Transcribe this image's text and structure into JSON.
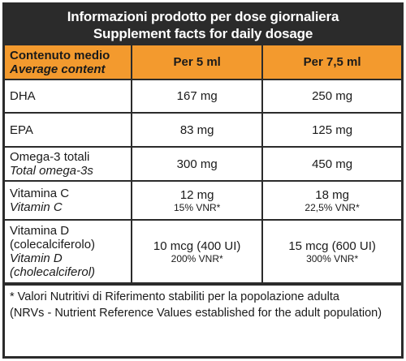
{
  "header": {
    "title_it": "Informazioni prodotto per dose giornaliera",
    "title_en": "Supplement facts for daily dosage"
  },
  "columns": {
    "label_it": "Contenuto medio",
    "label_en": "Average content",
    "dose1": "Per 5 ml",
    "dose2": "Per 7,5 ml"
  },
  "rows": [
    {
      "name": "DHA",
      "v1": "167 mg",
      "v2": "250 mg"
    },
    {
      "name": "EPA",
      "v1": "83 mg",
      "v2": "125 mg"
    },
    {
      "name": "Omega-3 totali",
      "name_en": "Total omega-3s",
      "v1": "300 mg",
      "v2": "450 mg"
    },
    {
      "name": "Vitamina C",
      "name_en": "Vitamin C",
      "v1": "12 mg",
      "v1_vnr": "15% VNR*",
      "v2": "18 mg",
      "v2_vnr": "22,5% VNR*"
    },
    {
      "name_line1": "Vitamina D",
      "name_line2": "(colecalciferolo)",
      "name_en_line1": "Vitamin D",
      "name_en_line2": "(cholecalciferol)",
      "v1": "10 mcg (400 UI)",
      "v1_vnr": "200% VNR*",
      "v2": "15 mcg (600 UI)",
      "v2_vnr": "300% VNR*"
    }
  ],
  "footnote": {
    "line1": "* Valori Nutritivi di Riferimento stabiliti per la popolazione adulta",
    "line2": "(NRVs - Nutrient Reference Values established for the adult population)"
  },
  "colors": {
    "header_bg": "#2b2b2b",
    "column_header_bg": "#f39a2e",
    "border": "#2b2b2b"
  }
}
